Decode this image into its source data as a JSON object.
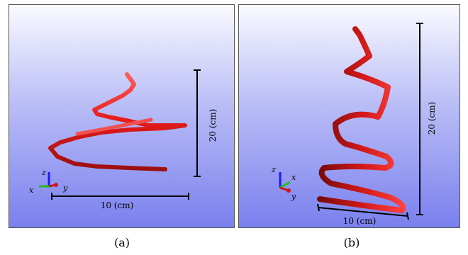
{
  "panels": [
    {
      "id": "a",
      "caption": "(a)",
      "vertical_scale_label": "20 (cm)",
      "horizontal_scale_label": "10 (cm)",
      "axes": {
        "x": "x",
        "y": "y",
        "z": "z"
      }
    },
    {
      "id": "b",
      "caption": "(b)",
      "vertical_scale_label": "20 (cm)",
      "horizontal_scale_label": "10 (cm)",
      "axes": {
        "x": "x",
        "y": "y",
        "z": "z"
      }
    }
  ],
  "colors": {
    "background_top": "#fafaff",
    "background_bottom": "#7a80ee",
    "tube_red": "#e41a1a",
    "tube_dark_red": "#8a0d0d",
    "axis_x": "#1a1aff",
    "axis_y": "#1fbf1f",
    "axis_z": "#d01818"
  }
}
